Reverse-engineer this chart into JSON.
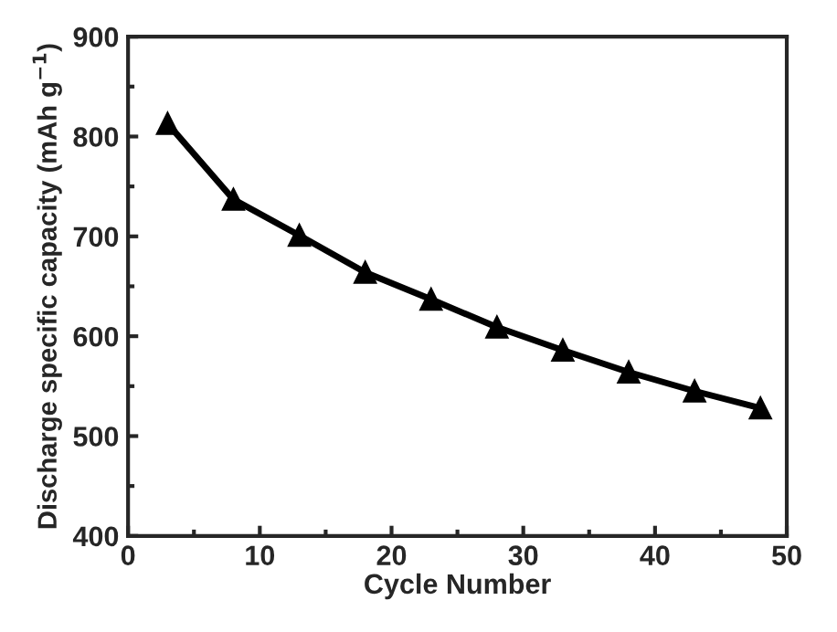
{
  "chart_data": {
    "type": "line",
    "xlabel": "Cycle Number",
    "ylabel": "Discharge specific capacity (mAh g$^{−1}$)",
    "x": [
      3,
      8,
      13,
      18,
      23,
      28,
      33,
      38,
      43,
      48
    ],
    "series": [
      {
        "color": "#000000",
        "values": [
          813,
          737,
          701,
          664,
          637,
          609,
          586,
          564,
          545,
          528
        ]
      }
    ],
    "xlim": [
      0,
      50
    ],
    "xticks": [
      0,
      10,
      20,
      30,
      40,
      50
    ],
    "ylim": [
      400,
      900
    ],
    "yticks": [
      400,
      500,
      600,
      700,
      800,
      900
    ],
    "marker": "triangle",
    "line_style": "solid",
    "grid": false,
    "legend": false
  }
}
